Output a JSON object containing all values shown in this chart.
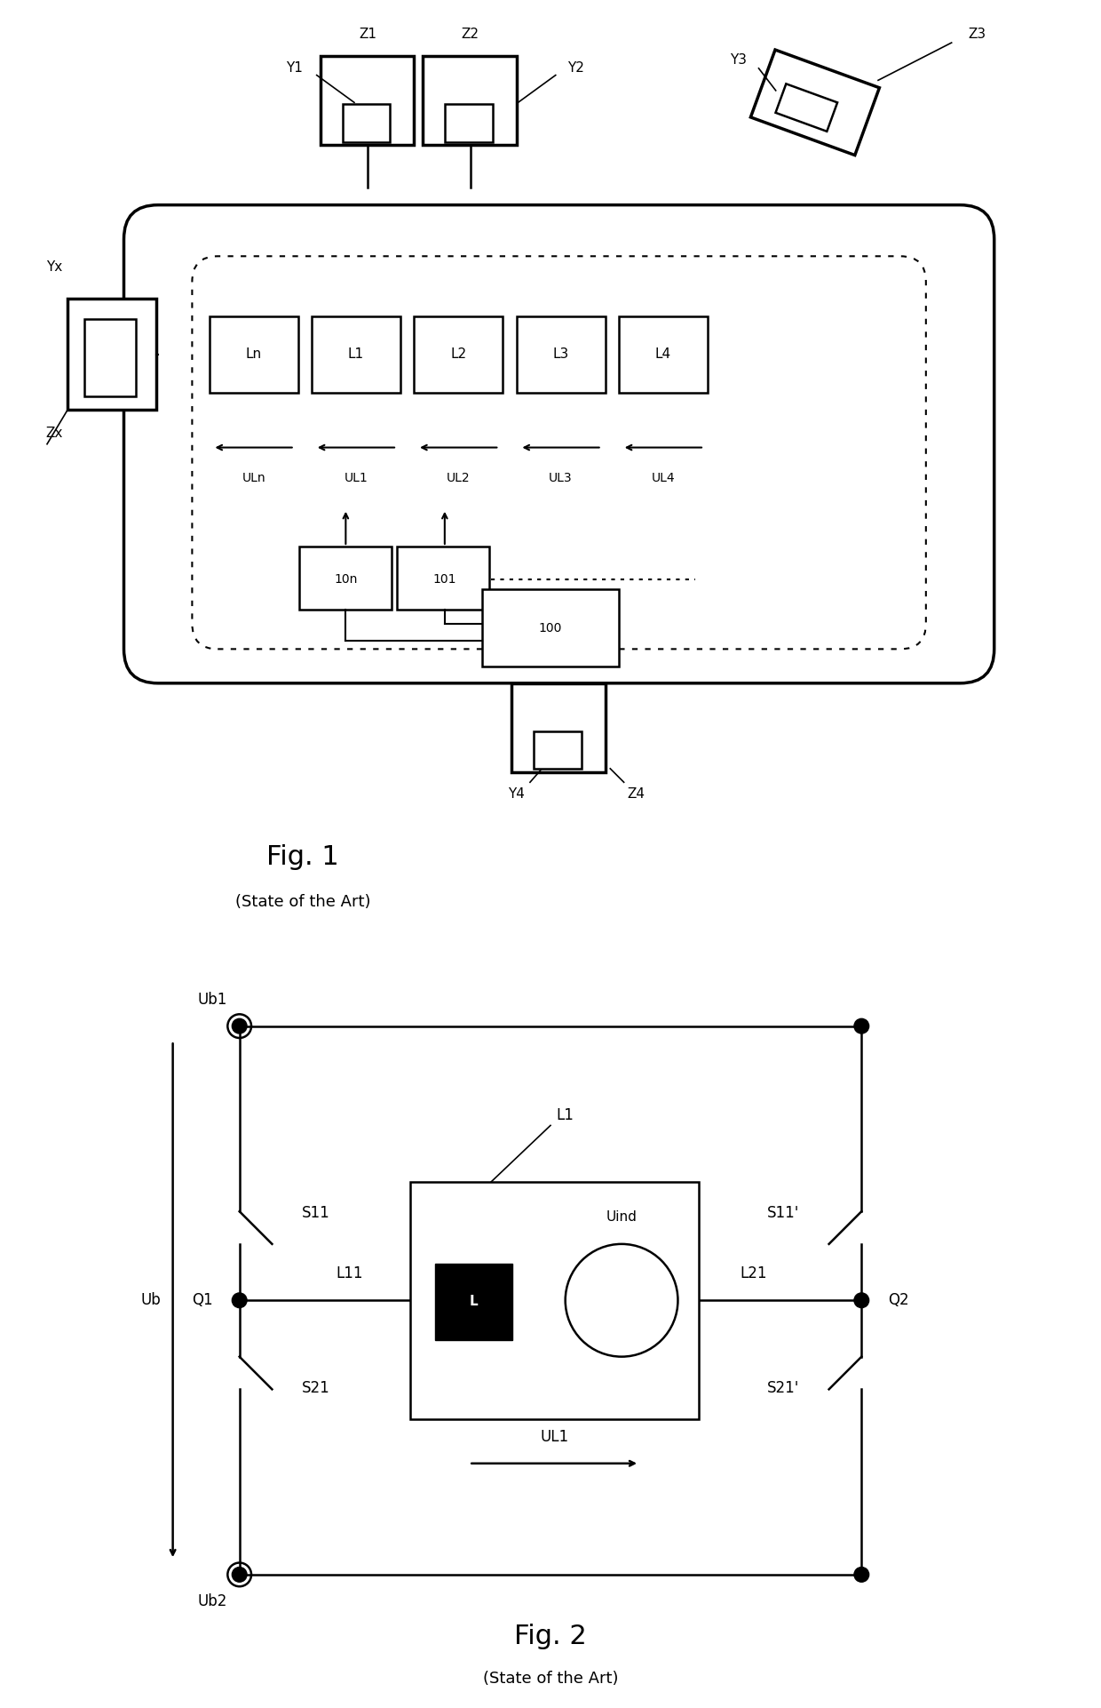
{
  "fig1": {
    "title": "Fig. 1",
    "subtitle": "(State of the Art)"
  },
  "fig2": {
    "title": "Fig. 2",
    "subtitle": "(State of the Art)"
  }
}
